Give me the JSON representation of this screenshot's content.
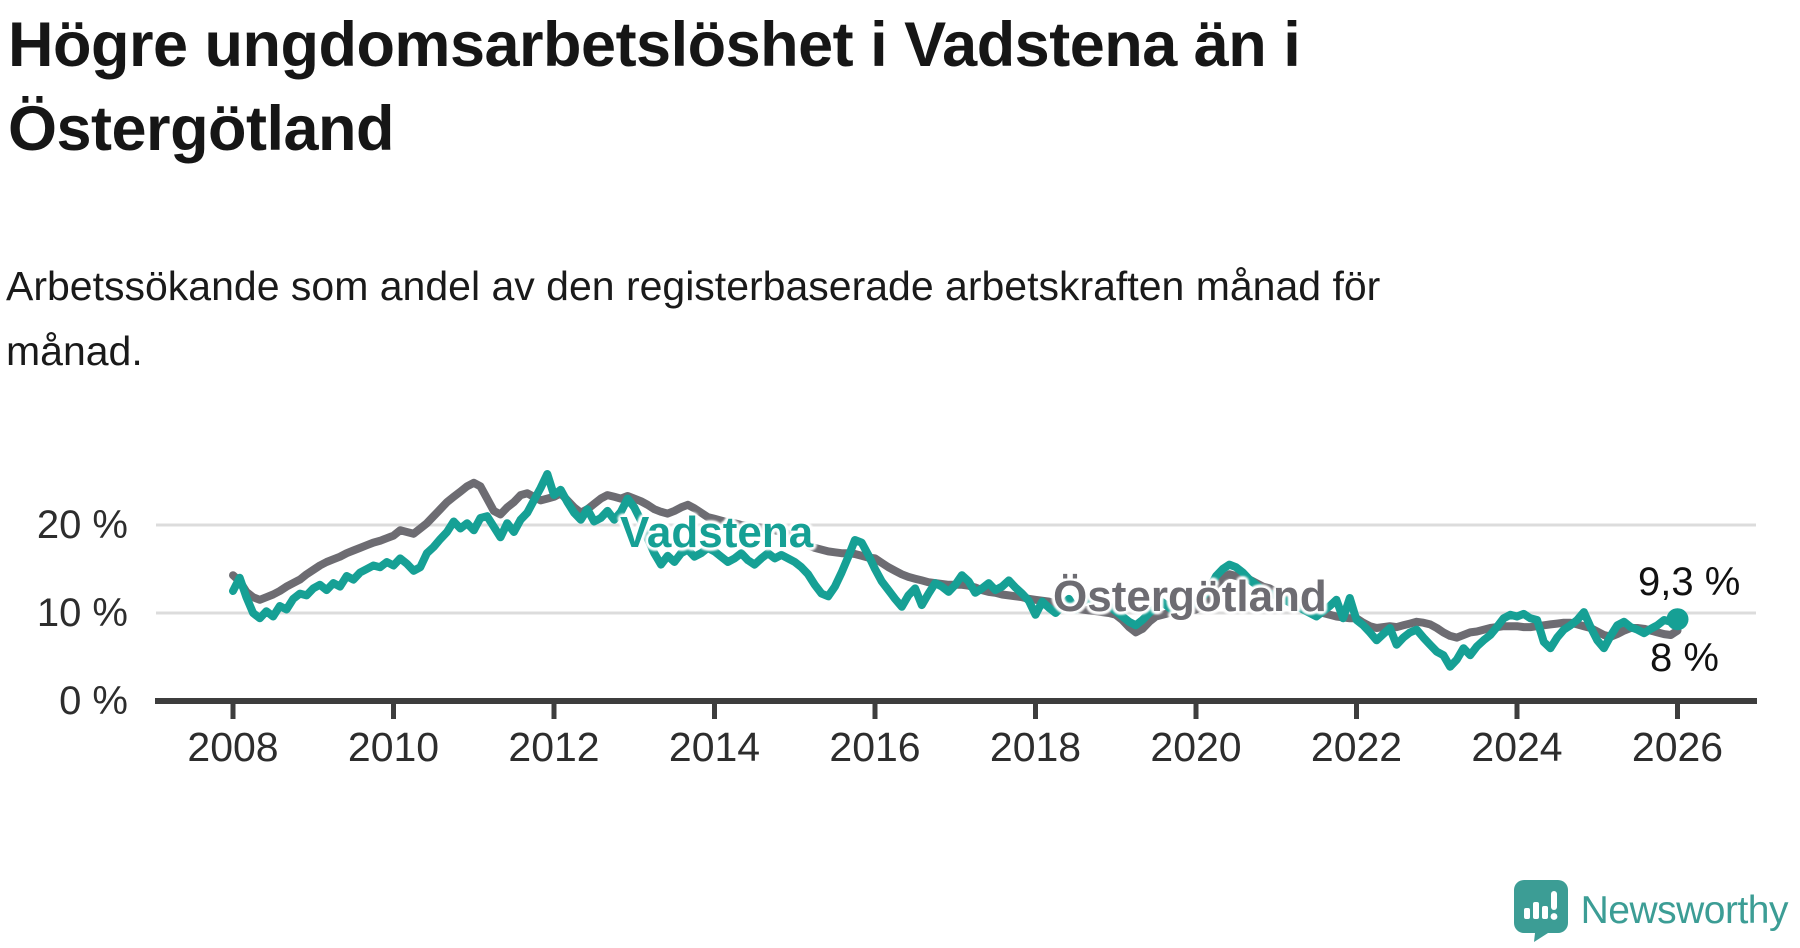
{
  "title": "Högre ungdomsarbetslöshet i Vadstena än i Östergötland",
  "subtitle": "Arbetssökande som andel av den registerbaserade arbetskraften månad för månad.",
  "footer": {
    "brand": "Newsworthy"
  },
  "colors": {
    "vadstena": "#16a095",
    "ostergotland": "#6d6c72",
    "gridline": "#dcdcdc",
    "axis": "#3d3d3d",
    "annotation": "#111111",
    "brand_teal": "#3c9d95"
  },
  "chart_data": {
    "type": "line",
    "unit": "%",
    "frequency": "monthly",
    "x_start": "2008-01",
    "x_end": "2026-01",
    "grid": "horizontal",
    "legend_position": "inline-labels",
    "ylim": [
      0,
      28
    ],
    "x_ticks": [
      "2008",
      "2010",
      "2012",
      "2014",
      "2016",
      "2018",
      "2020",
      "2022",
      "2024",
      "2026"
    ],
    "y_ticks": [
      {
        "value": 0,
        "label": "0 %"
      },
      {
        "value": 10,
        "label": "10 %"
      },
      {
        "value": 20,
        "label": "20 %"
      }
    ],
    "series": [
      {
        "name": "Vadstena",
        "color": "#16a095",
        "end_label": "9,3 %",
        "end_value": 9.3,
        "end_marker": true,
        "values": [
          12.5,
          14.0,
          11.8,
          10.0,
          9.4,
          10.2,
          9.6,
          10.8,
          10.4,
          11.6,
          12.2,
          12.0,
          12.8,
          13.2,
          12.6,
          13.4,
          13.0,
          14.2,
          13.8,
          14.6,
          15.0,
          15.4,
          15.2,
          15.8,
          15.4,
          16.2,
          15.6,
          14.8,
          15.2,
          16.8,
          17.5,
          18.4,
          19.2,
          20.4,
          19.6,
          20.2,
          19.4,
          20.8,
          21.0,
          19.8,
          18.6,
          20.2,
          19.2,
          20.6,
          21.4,
          22.8,
          24.2,
          25.8,
          23.4,
          24.0,
          22.6,
          21.4,
          20.6,
          21.8,
          20.4,
          20.8,
          21.6,
          20.6,
          21.5,
          23.0,
          22.0,
          20.5,
          18.5,
          16.8,
          15.5,
          16.5,
          15.8,
          16.8,
          17.2,
          16.4,
          16.8,
          17.4,
          17.0,
          16.4,
          15.8,
          16.2,
          16.8,
          16.0,
          15.5,
          16.2,
          16.8,
          16.2,
          16.6,
          16.2,
          15.8,
          15.2,
          14.4,
          13.2,
          12.2,
          11.9,
          13.0,
          14.6,
          16.4,
          18.3,
          18.0,
          16.6,
          15.0,
          13.6,
          12.6,
          11.6,
          10.7,
          12.0,
          12.8,
          10.9,
          12.2,
          13.4,
          13.0,
          12.4,
          13.2,
          14.3,
          13.6,
          12.3,
          12.8,
          13.4,
          12.6,
          13.0,
          13.7,
          12.9,
          12.2,
          11.4,
          9.8,
          11.3,
          10.6,
          10.0,
          10.8,
          11.6,
          10.4,
          11.2,
          11.8,
          11.0,
          10.4,
          10.8,
          10.2,
          9.6,
          9.0,
          8.6,
          9.2,
          10.0,
          10.6,
          11.2,
          10.6,
          10.0,
          10.4,
          10.8,
          11.2,
          11.8,
          12.8,
          14.2,
          15.0,
          15.5,
          15.2,
          14.6,
          13.8,
          13.2,
          12.6,
          12.2,
          12.0,
          11.6,
          11.2,
          10.8,
          10.4,
          10.0,
          9.6,
          10.2,
          10.8,
          11.5,
          9.4,
          11.7,
          9.2,
          8.6,
          7.8,
          6.9,
          7.6,
          8.3,
          6.4,
          7.2,
          7.8,
          8.1,
          7.2,
          6.4,
          5.6,
          5.2,
          3.9,
          4.7,
          6.0,
          5.2,
          6.2,
          6.9,
          7.5,
          8.4,
          9.4,
          9.8,
          9.6,
          9.9,
          9.4,
          9.2,
          6.7,
          6.0,
          7.2,
          8.1,
          8.6,
          9.2,
          10.1,
          8.4,
          6.9,
          6.0,
          7.4,
          8.6,
          9.0,
          8.4,
          8.1,
          7.7,
          8.2,
          8.6,
          9.2,
          9.0,
          9.3
        ]
      },
      {
        "name": "Östergötland",
        "color": "#6d6c72",
        "end_label": "8 %",
        "end_value": 8.0,
        "end_marker": false,
        "values": [
          14.3,
          13.6,
          12.4,
          11.8,
          11.5,
          11.8,
          12.1,
          12.5,
          13.0,
          13.4,
          13.8,
          14.4,
          14.9,
          15.4,
          15.8,
          16.1,
          16.4,
          16.8,
          17.1,
          17.4,
          17.7,
          18.0,
          18.2,
          18.5,
          18.8,
          19.4,
          19.2,
          19.0,
          19.6,
          20.2,
          21.0,
          21.8,
          22.6,
          23.2,
          23.8,
          24.4,
          24.8,
          24.4,
          23.0,
          21.6,
          21.2,
          22.0,
          22.6,
          23.4,
          23.6,
          23.2,
          22.8,
          23.0,
          23.2,
          23.6,
          22.8,
          22.0,
          21.4,
          21.8,
          22.4,
          23.0,
          23.4,
          23.2,
          23.0,
          23.3,
          23.0,
          22.7,
          22.3,
          21.8,
          21.5,
          21.3,
          21.6,
          22.0,
          22.3,
          21.9,
          21.4,
          20.9,
          20.7,
          20.5,
          20.3,
          20.2,
          20.0,
          19.9,
          19.8,
          19.7,
          19.6,
          19.4,
          19.2,
          19.0,
          18.8,
          18.2,
          17.7,
          17.4,
          17.2,
          17.0,
          16.9,
          16.8,
          16.8,
          16.7,
          16.5,
          16.3,
          16.2,
          15.7,
          15.2,
          14.8,
          14.4,
          14.1,
          13.9,
          13.7,
          13.5,
          13.4,
          13.3,
          13.2,
          13.2,
          13.2,
          13.1,
          12.9,
          12.6,
          12.4,
          12.3,
          12.1,
          12.0,
          11.9,
          11.8,
          11.6,
          11.5,
          11.4,
          11.3,
          11.1,
          10.8,
          10.6,
          10.5,
          10.4,
          10.3,
          10.2,
          10.1,
          10.0,
          9.8,
          9.2,
          8.4,
          7.8,
          8.2,
          9.0,
          9.6,
          9.8,
          10.0,
          10.0,
          10.1,
          10.2,
          10.4,
          10.8,
          11.8,
          13.2,
          14.0,
          14.4,
          14.2,
          14.0,
          13.8,
          13.4,
          13.0,
          12.8,
          12.4,
          12.0,
          11.6,
          11.2,
          10.8,
          10.4,
          10.2,
          10.0,
          9.8,
          9.6,
          9.5,
          9.4,
          9.4,
          8.9,
          8.5,
          8.3,
          8.4,
          8.5,
          8.4,
          8.6,
          8.8,
          9.0,
          8.9,
          8.7,
          8.3,
          7.8,
          7.4,
          7.2,
          7.5,
          7.8,
          7.9,
          8.1,
          8.3,
          8.4,
          8.5,
          8.5,
          8.5,
          8.4,
          8.4,
          8.5,
          8.6,
          8.7,
          8.8,
          8.9,
          8.9,
          8.7,
          8.5,
          8.3,
          7.9,
          7.5,
          7.3,
          7.6,
          8.0,
          8.3,
          8.3,
          8.2,
          8.0,
          7.8,
          7.6,
          7.5,
          8.0
        ]
      }
    ]
  }
}
